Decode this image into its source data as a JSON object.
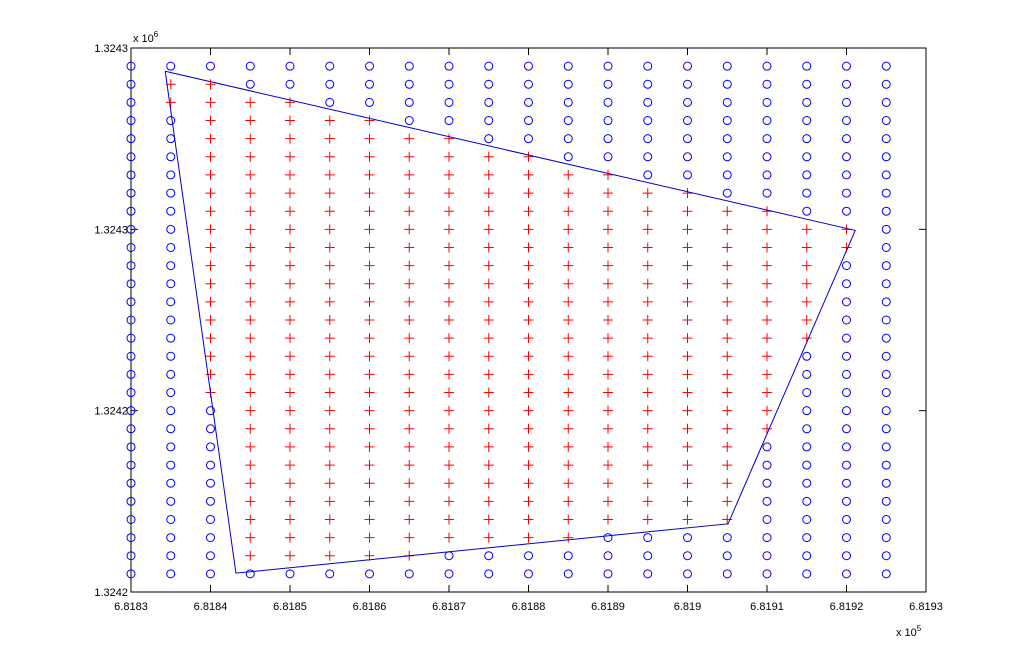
{
  "chart_data": {
    "type": "scatter",
    "grid_x": [
      681830,
      681835,
      681840,
      681845,
      681850,
      681855,
      681860,
      681865,
      681870,
      681875,
      681880,
      681885,
      681890,
      681895,
      681900,
      681905,
      681910,
      681915,
      681920,
      681925
    ],
    "grid_y": [
      1324205,
      1324210,
      1324215,
      1324220,
      1324225,
      1324230,
      1324235,
      1324240,
      1324245,
      1324250,
      1324255,
      1324260,
      1324265,
      1324270,
      1324275,
      1324280,
      1324285,
      1324290,
      1324295,
      1324300,
      1324305,
      1324310,
      1324315,
      1324320,
      1324325,
      1324330,
      1324335,
      1324340,
      1324345
    ],
    "polygon": {
      "color": "#0000cc",
      "x": [
        681834.3,
        681921.1,
        681905.1,
        681843.2,
        681834.3
      ],
      "y": [
        1324343.6,
        1324299.7,
        1324218.8,
        1324205.2,
        1324343.6
      ]
    },
    "inside_marker": {
      "marker": "+",
      "color": "#ff0000"
    },
    "outside_marker": {
      "marker": "o",
      "color": "#0000ff"
    },
    "xlim": [
      681830,
      681930
    ],
    "ylim": [
      1324200,
      1324350
    ],
    "xticks": [
      {
        "value": 681830,
        "label": "6.8183"
      },
      {
        "value": 681840,
        "label": "6.8184"
      },
      {
        "value": 681850,
        "label": "6.8185"
      },
      {
        "value": 681860,
        "label": "6.8186"
      },
      {
        "value": 681870,
        "label": "6.8187"
      },
      {
        "value": 681880,
        "label": "6.8188"
      },
      {
        "value": 681890,
        "label": "6.8189"
      },
      {
        "value": 681900,
        "label": "6.819"
      },
      {
        "value": 681910,
        "label": "6.8191"
      },
      {
        "value": 681920,
        "label": "6.8192"
      },
      {
        "value": 681930,
        "label": "6.8193"
      }
    ],
    "yticks": [
      {
        "value": 1324200,
        "label": "1.3242"
      },
      {
        "value": 1324250,
        "label": "1.3242"
      },
      {
        "value": 1324300,
        "label": "1.3243"
      },
      {
        "value": 1324350,
        "label": "1.3243"
      }
    ],
    "x_multiplier": {
      "text": "x 10",
      "exponent": 5
    },
    "y_multiplier": {
      "text": "x 10",
      "exponent": 6
    }
  }
}
